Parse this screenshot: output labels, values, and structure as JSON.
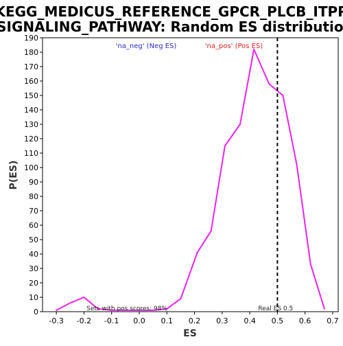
{
  "chart_data": {
    "type": "line",
    "title_lines": [
      "KEGG_MEDICUS_REFERENCE_GPCR_PLCB_ITPR",
      "_SIGNALING_PATHWAY: Random ES distribution"
    ],
    "xlabel": "ES",
    "ylabel": "P(ES)",
    "xlim": [
      -0.35,
      0.72
    ],
    "ylim": [
      0,
      190
    ],
    "x_ticks": [
      -0.3,
      -0.2,
      -0.1,
      0.0,
      0.1,
      0.2,
      0.3,
      0.4,
      0.5,
      0.6,
      0.7
    ],
    "x_tick_labels": [
      "-0.3",
      "-0.2",
      "-0.1",
      "0.0",
      "0.1",
      "0.2",
      "0.3",
      "0.4",
      "0.5",
      "0.6",
      "0.7"
    ],
    "y_ticks": [
      0,
      10,
      20,
      30,
      40,
      50,
      60,
      70,
      80,
      90,
      100,
      110,
      120,
      130,
      140,
      150,
      160,
      170,
      180,
      190
    ],
    "grid": false,
    "legend_position": "top",
    "legend": {
      "neg_label": "'na_neg' (Neg ES)",
      "pos_label": "'na_pos' (Pos ES)",
      "neg_color": "#2a2acc",
      "pos_color": "#e0201f"
    },
    "series": [
      {
        "color": "#ee22ee",
        "x": [
          -0.3,
          -0.25,
          -0.2,
          -0.15,
          -0.1,
          -0.05,
          0.0,
          0.05,
          0.1,
          0.15,
          0.21,
          0.26,
          0.31,
          0.365,
          0.415,
          0.47,
          0.52,
          0.57,
          0.62,
          0.67
        ],
        "y": [
          1,
          6,
          10,
          2,
          1,
          1,
          1,
          1,
          2,
          9,
          41,
          56,
          115,
          130,
          182,
          158,
          150,
          102,
          33,
          2
        ]
      }
    ],
    "real_es": {
      "value": 0.5,
      "label": "Real ES 0.5",
      "style": "dashed",
      "color": "#000000"
    },
    "annotation": "Sets with pos scores: 98%"
  }
}
